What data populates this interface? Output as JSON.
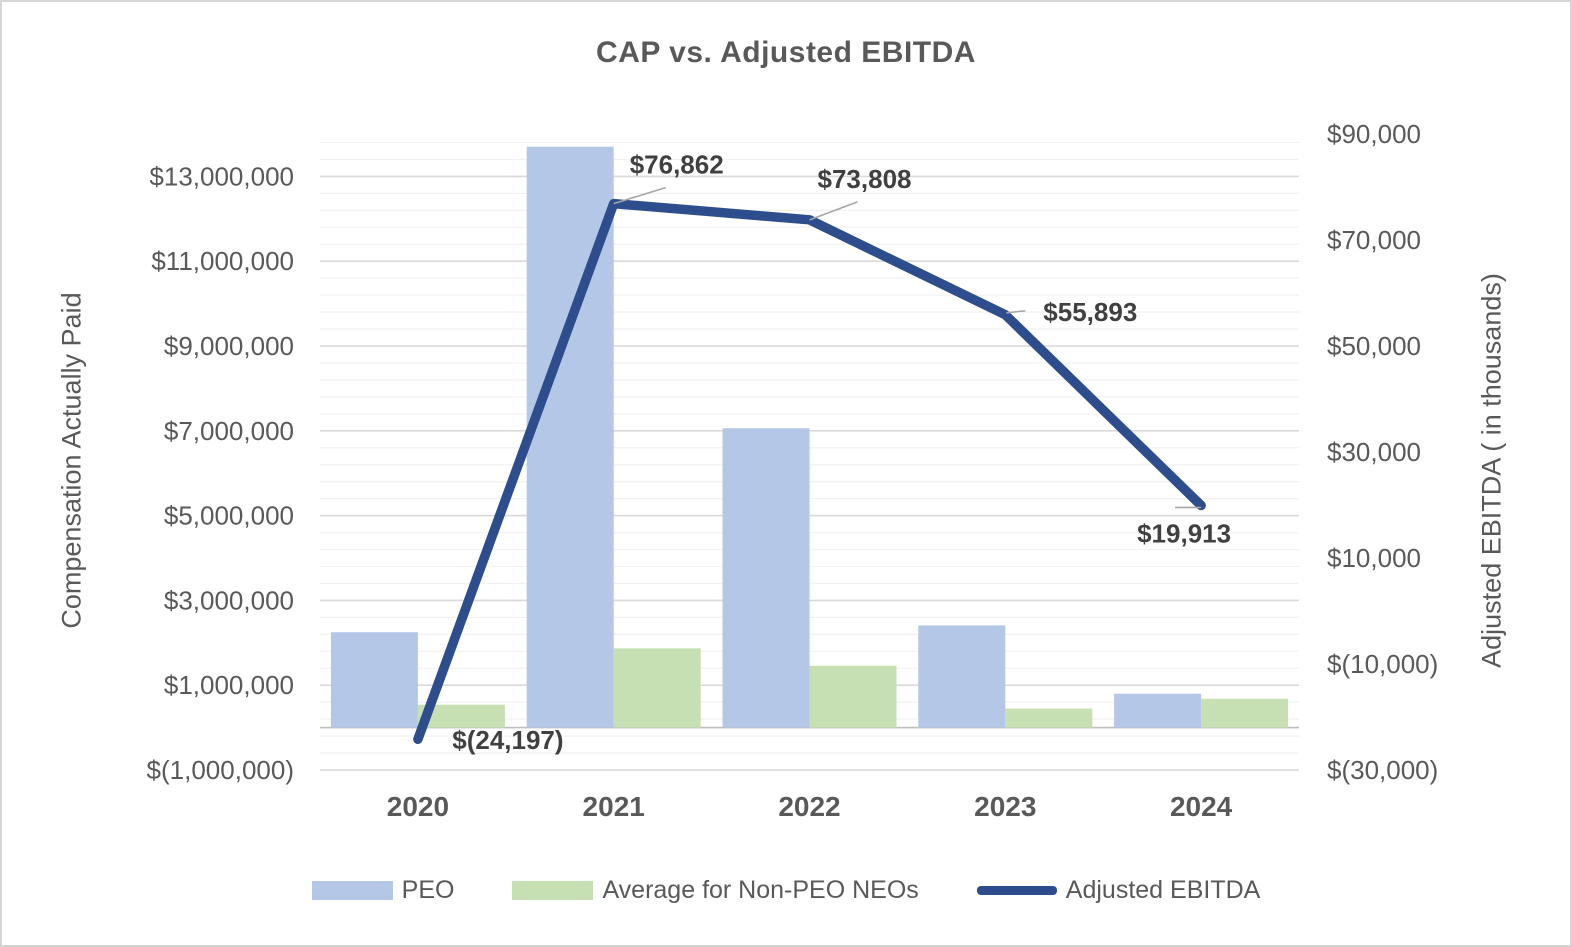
{
  "chart_data": {
    "type": "combo-bar-line",
    "title": "CAP vs. Adjusted EBITDA",
    "categories": [
      "2020",
      "2021",
      "2022",
      "2023",
      "2024"
    ],
    "bar_series": [
      {
        "name": "PEO",
        "color": "#b4c7e7",
        "axis": "left",
        "values": [
          2250000,
          13700000,
          7060000,
          2410000,
          800000
        ]
      },
      {
        "name": "Average for Non-PEO NEOs",
        "color": "#c6e0b4",
        "axis": "left",
        "values": [
          540000,
          1870000,
          1460000,
          450000,
          680000
        ]
      }
    ],
    "line_series": {
      "name": "Adjusted EBITDA",
      "color": "#2d4d8c",
      "axis": "right",
      "values": [
        -24197,
        76862,
        73808,
        55893,
        19913
      ],
      "labels": [
        "$(24,197)",
        "$76,862",
        "$73,808",
        "$55,893",
        "$19,913"
      ]
    },
    "left_axis": {
      "title": "Compensation Actually Paid",
      "min": -1000000,
      "max": 14000000,
      "minor_unit": 400000,
      "major_unit": 2000000,
      "ticks": [
        {
          "value": 13000000,
          "label": "$13,000,000"
        },
        {
          "value": 11000000,
          "label": "$11,000,000"
        },
        {
          "value": 9000000,
          "label": "$9,000,000"
        },
        {
          "value": 7000000,
          "label": "$7,000,000"
        },
        {
          "value": 5000000,
          "label": "$5,000,000"
        },
        {
          "value": 3000000,
          "label": "$3,000,000"
        },
        {
          "value": 1000000,
          "label": "$1,000,000"
        },
        {
          "value": -1000000,
          "label": "$(1,000,000)"
        }
      ]
    },
    "right_axis": {
      "title": "Adjusted EBITDA ( in thousands)",
      "min": -30000,
      "max": 90000,
      "major_unit": 20000,
      "ticks": [
        {
          "value": 90000,
          "label": "$90,000"
        },
        {
          "value": 70000,
          "label": "$70,000"
        },
        {
          "value": 50000,
          "label": "$50,000"
        },
        {
          "value": 30000,
          "label": "$30,000"
        },
        {
          "value": 10000,
          "label": "$10,000"
        },
        {
          "value": -10000,
          "label": "$(10,000)"
        },
        {
          "value": -30000,
          "label": "$(30,000)"
        }
      ]
    },
    "legend": [
      "PEO",
      "Average for Non-PEO NEOs",
      "Adjusted EBITDA"
    ],
    "legend_position": "bottom",
    "grid": "horizontal-minor-and-major"
  },
  "colors": {
    "text_gray": "#595959",
    "data_label": "#404040",
    "minor_gridline": "#f2f2f2",
    "major_gridline": "#d9d9d9",
    "zero_axis_line": "#bfbfbf",
    "leader_line": "#a6a6a6",
    "peo_bar": "#b4c7e7",
    "non_peo_bar": "#c6e0b4",
    "ebitda_line": "#2d4d8c"
  }
}
